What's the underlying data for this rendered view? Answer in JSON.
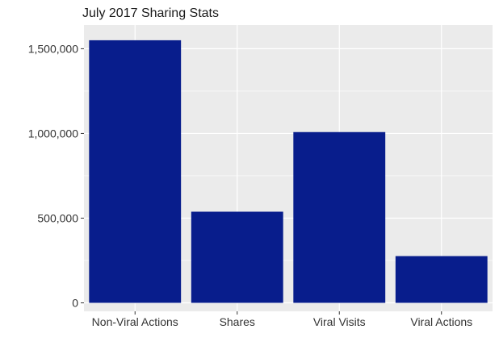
{
  "chart_data": {
    "type": "bar",
    "title": "July 2017 Sharing Stats",
    "xlabel": "",
    "ylabel": "",
    "categories": [
      "Non-Viral Actions",
      "Shares",
      "Viral Visits",
      "Viral Actions"
    ],
    "values": [
      1550000,
      538000,
      1008000,
      276000
    ],
    "ylim": [
      -50000,
      1640000
    ],
    "yticks": [
      0,
      500000,
      1000000,
      1500000
    ],
    "ytick_labels": [
      "0",
      "500,000",
      "1,000,000",
      "1,500,000"
    ],
    "grid": true,
    "bar_color": "#081d8c",
    "panel_color": "#ebebeb"
  }
}
